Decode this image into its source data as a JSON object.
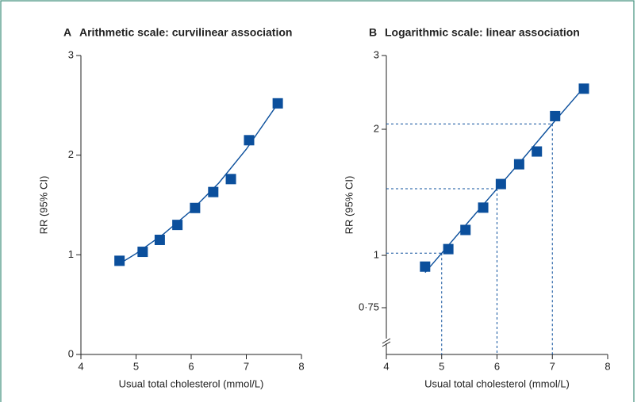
{
  "chart_data": [
    {
      "type": "scatter",
      "label": "A",
      "title": "Arithmetic scale: curvilinear association",
      "xlabel": "Usual total cholesterol (mmol/L)",
      "ylabel": "RR (95% CI)",
      "xlim": [
        4,
        8
      ],
      "xticks": [
        4,
        5,
        6,
        7,
        8
      ],
      "ylim": [
        0,
        3
      ],
      "yticks": [
        0,
        1,
        2,
        3
      ],
      "log_y": false,
      "color": "#0b4f9c",
      "x": [
        4.7,
        5.12,
        5.43,
        5.75,
        6.07,
        6.4,
        6.72,
        7.05,
        7.57
      ],
      "values": [
        0.94,
        1.03,
        1.15,
        1.3,
        1.47,
        1.63,
        1.76,
        2.15,
        2.52
      ],
      "fit": {
        "x": [
          4.7,
          5,
          5.5,
          6,
          6.5,
          7,
          7.55
        ],
        "values": [
          0.91,
          1.012,
          1.209,
          1.442,
          1.72,
          2.06,
          2.5
        ]
      }
    },
    {
      "type": "scatter",
      "label": "B",
      "title": "Logarithmic scale: linear association",
      "xlabel": "Usual total cholesterol (mmol/L)",
      "ylabel": "RR (95% CI)",
      "xlim": [
        4,
        8
      ],
      "xticks": [
        4,
        5,
        6,
        7,
        8
      ],
      "ylim": [
        0.58,
        3
      ],
      "yticks": [
        {
          "value": 0.75,
          "label": "0·75"
        },
        1,
        2,
        3
      ],
      "log_y": true,
      "color": "#0b4f9c",
      "x": [
        4.7,
        5.12,
        5.43,
        5.75,
        6.07,
        6.4,
        6.72,
        7.05,
        7.57
      ],
      "values": [
        0.94,
        1.035,
        1.15,
        1.3,
        1.48,
        1.65,
        1.77,
        2.15,
        2.5
      ],
      "fit": {
        "x": [
          4.7,
          5,
          5.5,
          6,
          6.5,
          7,
          7.55
        ],
        "values": [
          0.91,
          1.012,
          1.209,
          1.442,
          1.72,
          2.06,
          2.5
        ]
      },
      "guides": {
        "x": [
          5,
          6,
          7
        ],
        "values": [
          1.012,
          1.442,
          2.06
        ]
      }
    }
  ]
}
